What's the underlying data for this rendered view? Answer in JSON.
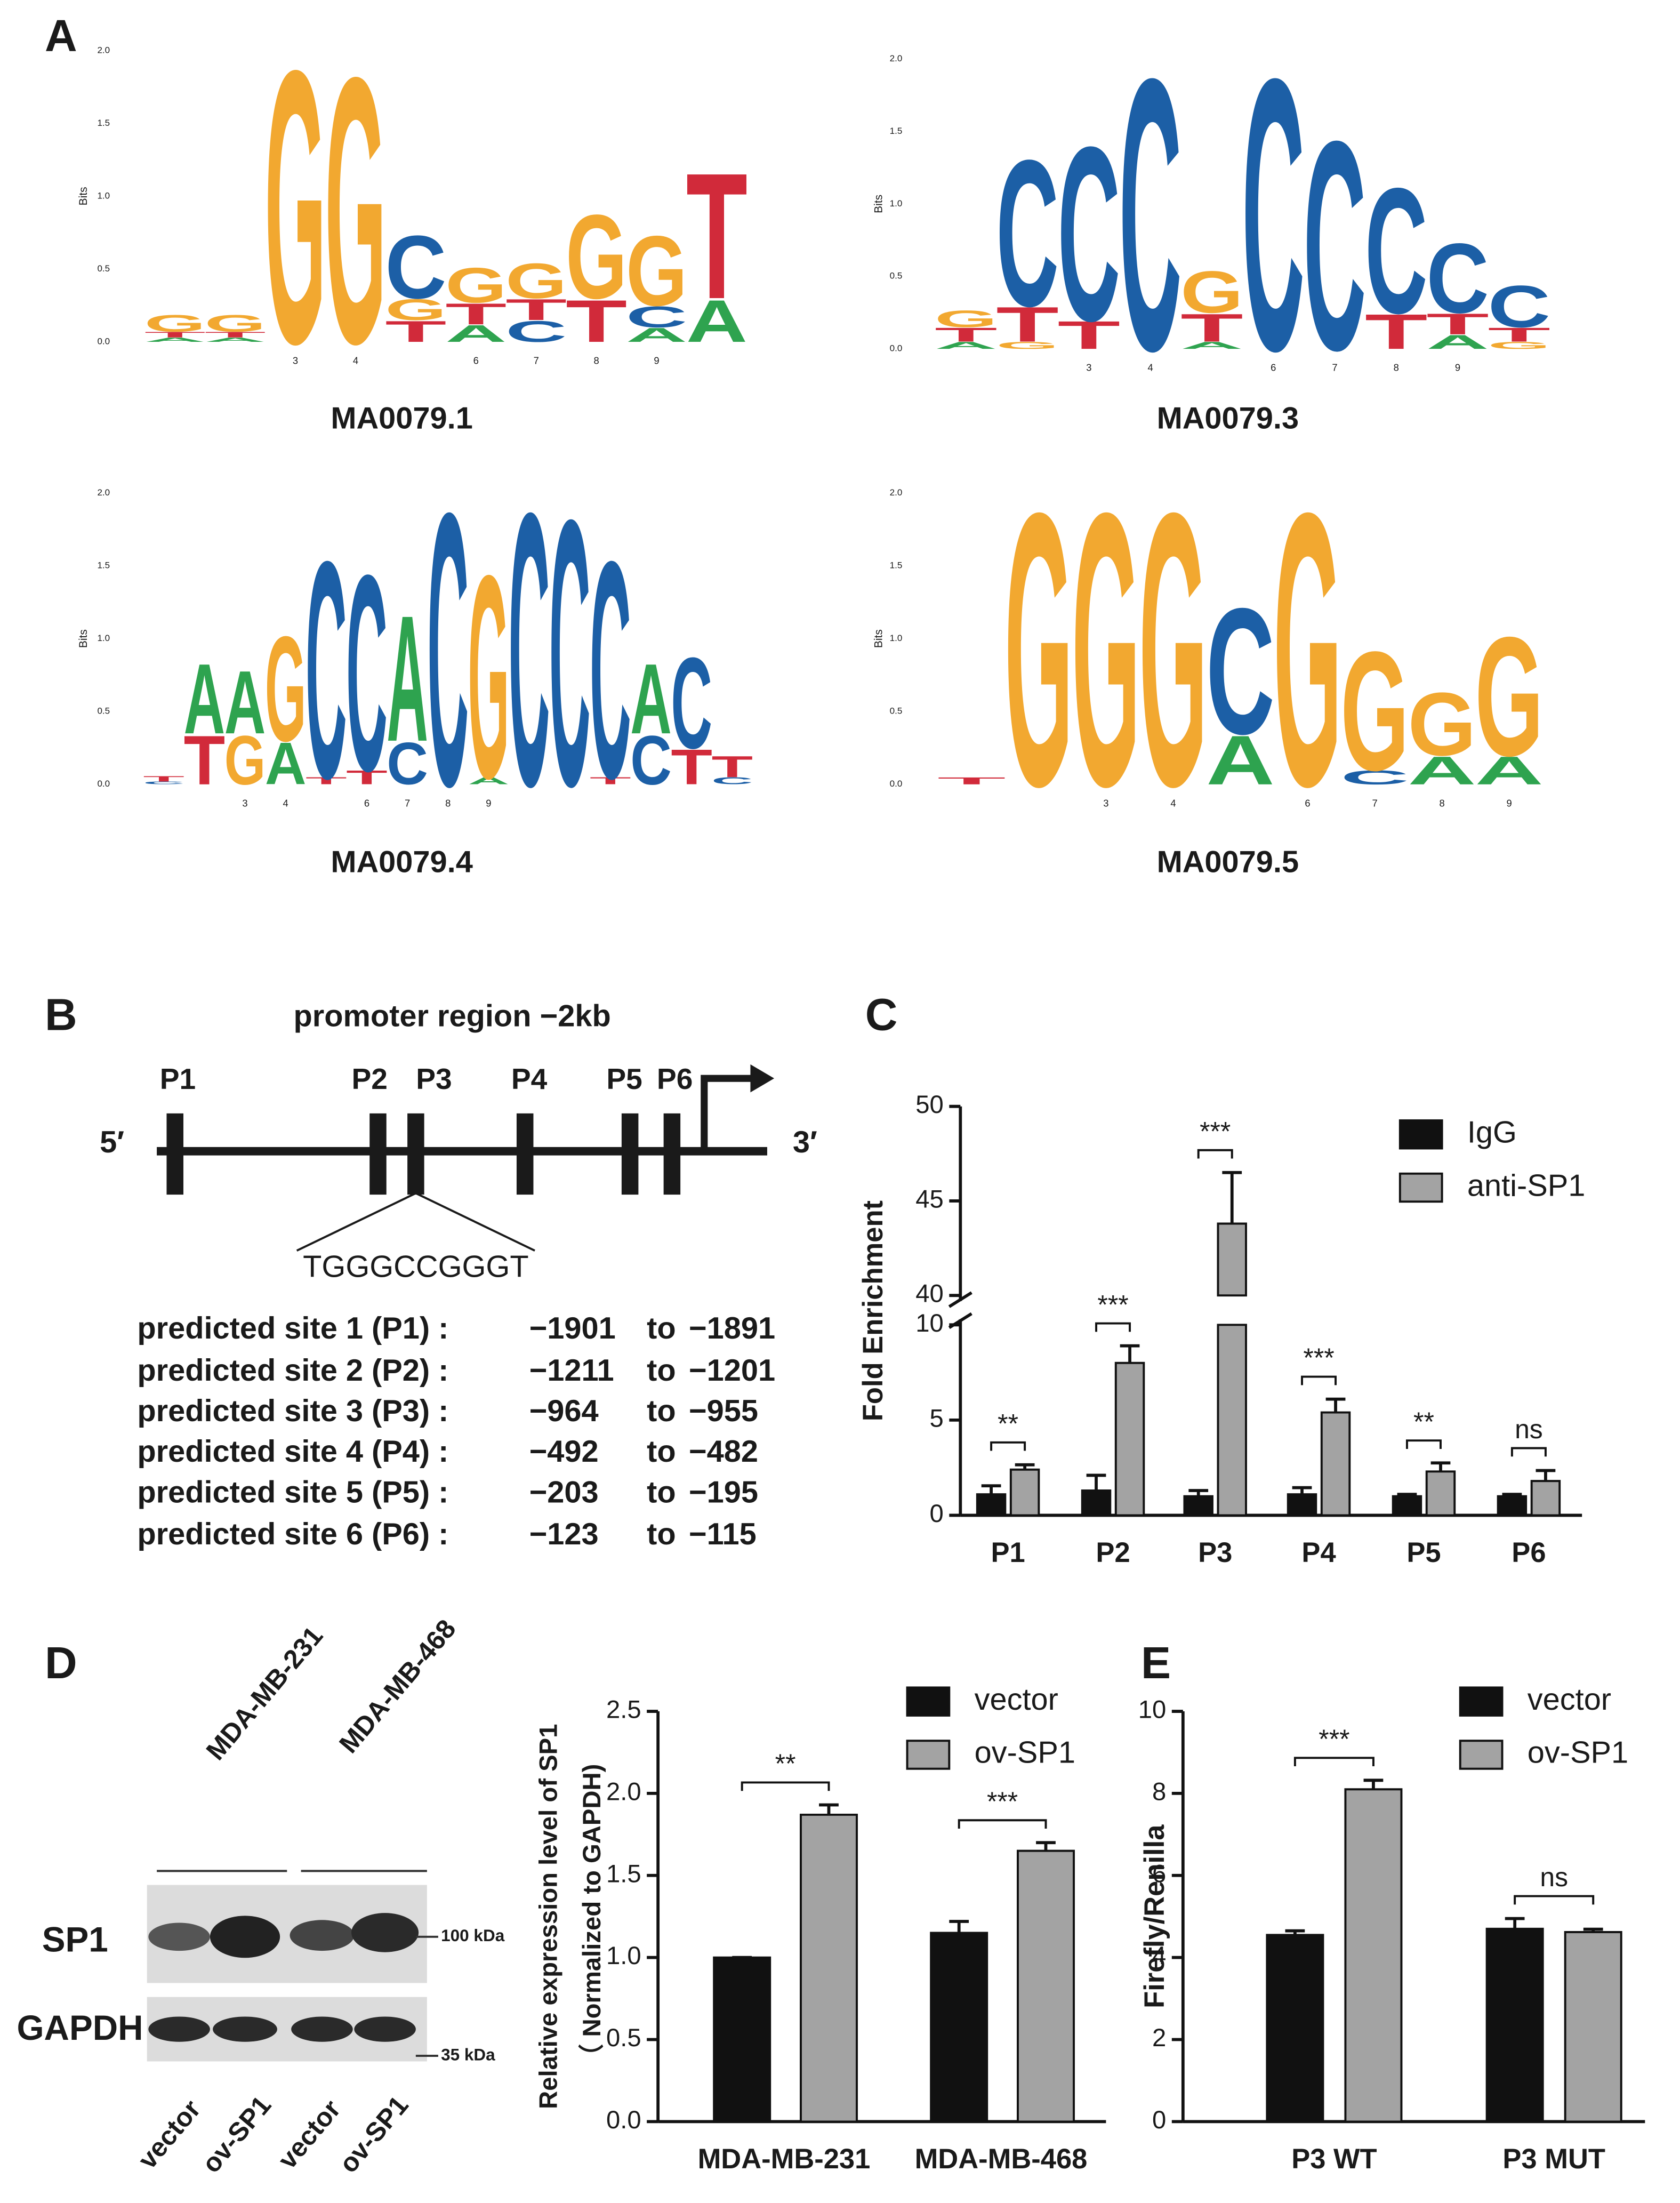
{
  "panel_labels": [
    "A",
    "B",
    "C",
    "D",
    "E"
  ],
  "promoter": {
    "title": "promoter region −2kb",
    "five_prime": "5′",
    "three_prime": "3′",
    "sites": [
      "P1",
      "P2",
      "P3",
      "P4",
      "P5",
      "P6"
    ],
    "sequence": "TGGGCCGGGT",
    "rows": [
      [
        "predicted site 1 (P1) :",
        "−1901",
        "to",
        "−1891"
      ],
      [
        "predicted site 2 (P2) :",
        "−1211",
        "to",
        "−1201"
      ],
      [
        "predicted site 3 (P3) :",
        "−964",
        "to",
        "−955"
      ],
      [
        "predicted site 4 (P4) :",
        "−492",
        "to",
        "−482"
      ],
      [
        "predicted site 5 (P5) :",
        "−203",
        "to",
        "−195"
      ],
      [
        "predicted site 6 (P6) :",
        "−123",
        "to",
        "−115"
      ]
    ]
  },
  "blot": {
    "cell_lines": [
      "MDA-MB-231",
      "MDA-MB-468"
    ],
    "proteins": [
      "SP1",
      "GAPDH"
    ],
    "markers": [
      "100 kDa",
      "35 kDa"
    ],
    "lanes": [
      "vector",
      "ov-SP1",
      "vector",
      "ov-SP1"
    ]
  },
  "chart_data": [
    {
      "type": "logo",
      "title": "MA0079.1",
      "ylabel": "Bits",
      "ylim": [
        0,
        2
      ],
      "yticks": [
        {
          "value": 0,
          "label": "0.0"
        },
        0.5,
        {
          "value": 1,
          "label": "1.0"
        },
        1.5,
        {
          "value": 2,
          "label": "2.0"
        }
      ],
      "categories": [
        null,
        null,
        "3",
        "4",
        null,
        "6",
        "7",
        "8",
        "9",
        null
      ],
      "colors": {
        "A": "#2ea34f",
        "C": "#1c5fa6",
        "G": "#f2a830",
        "T": "#d12a3a"
      },
      "stacks": [
        {
          "letters": [
            "A",
            "T",
            "G"
          ],
          "values": [
            0.03,
            0.04,
            0.12
          ]
        },
        {
          "letters": [
            "A",
            "T",
            "G"
          ],
          "values": [
            0.03,
            0.04,
            0.12
          ]
        },
        {
          "letters": [
            "G"
          ],
          "values": [
            1.95
          ]
        },
        {
          "letters": [
            "G"
          ],
          "values": [
            1.9
          ]
        },
        {
          "letters": [
            "T",
            "G",
            "C"
          ],
          "values": [
            0.15,
            0.15,
            0.45
          ]
        },
        {
          "letters": [
            "A",
            "T",
            "G"
          ],
          "values": [
            0.12,
            0.15,
            0.25
          ]
        },
        {
          "letters": [
            "C",
            "T",
            "G"
          ],
          "values": [
            0.15,
            0.15,
            0.25
          ]
        },
        {
          "letters": [
            "T",
            "G"
          ],
          "values": [
            0.3,
            0.6
          ]
        },
        {
          "letters": [
            "A",
            "C",
            "G"
          ],
          "values": [
            0.1,
            0.15,
            0.5
          ]
        },
        {
          "letters": [
            "A",
            "T"
          ],
          "values": [
            0.3,
            0.9
          ]
        }
      ]
    },
    {
      "type": "logo",
      "title": "MA0079.3",
      "ylabel": "Bits",
      "ylim": [
        0,
        2
      ],
      "yticks": [
        {
          "value": 0,
          "label": "0.0"
        },
        0.5,
        {
          "value": 1,
          "label": "1.0"
        },
        1.5,
        {
          "value": 2,
          "label": "2.0"
        }
      ],
      "categories": [
        null,
        null,
        "3",
        "4",
        null,
        "6",
        "7",
        "8",
        "9",
        null
      ],
      "colors": {
        "A": "#2ea34f",
        "C": "#1c5fa6",
        "G": "#f2a830",
        "T": "#d12a3a"
      },
      "stacks": [
        {
          "letters": [
            "A",
            "T",
            "G"
          ],
          "values": [
            0.05,
            0.1,
            0.12
          ]
        },
        {
          "letters": [
            "G",
            "T",
            "C"
          ],
          "values": [
            0.05,
            0.25,
            1.05
          ]
        },
        {
          "letters": [
            "T",
            "C"
          ],
          "values": [
            0.2,
            1.25
          ]
        },
        {
          "letters": [
            "C"
          ],
          "values": [
            1.95
          ]
        },
        {
          "letters": [
            "A",
            "T",
            "G"
          ],
          "values": [
            0.05,
            0.2,
            0.3
          ]
        },
        {
          "letters": [
            "C"
          ],
          "values": [
            1.95
          ]
        },
        {
          "letters": [
            "C"
          ],
          "values": [
            1.5
          ]
        },
        {
          "letters": [
            "T",
            "C"
          ],
          "values": [
            0.25,
            0.9
          ]
        },
        {
          "letters": [
            "A",
            "T",
            "C"
          ],
          "values": [
            0.1,
            0.15,
            0.5
          ]
        },
        {
          "letters": [
            "G",
            "T",
            "C"
          ],
          "values": [
            0.05,
            0.1,
            0.3
          ]
        }
      ]
    },
    {
      "type": "logo",
      "title": "MA0079.4",
      "ylabel": "Bits",
      "ylim": [
        0,
        2
      ],
      "yticks": [
        {
          "value": 0,
          "label": "0.0"
        },
        0.5,
        {
          "value": 1,
          "label": "1.0"
        },
        1.5,
        {
          "value": 2,
          "label": "2.0"
        }
      ],
      "categories": [
        null,
        null,
        "3",
        "4",
        null,
        "6",
        "7",
        "8",
        "9",
        null,
        null,
        null,
        null,
        null,
        null
      ],
      "colors": {
        "A": "#2ea34f",
        "C": "#1c5fa6",
        "G": "#f2a830",
        "T": "#d12a3a"
      },
      "stacks": [
        {
          "letters": [
            "C",
            "T"
          ],
          "values": [
            0.02,
            0.04
          ]
        },
        {
          "letters": [
            "T",
            "A"
          ],
          "values": [
            0.35,
            0.5
          ]
        },
        {
          "letters": [
            "G",
            "A"
          ],
          "values": [
            0.35,
            0.45
          ]
        },
        {
          "letters": [
            "A",
            "G"
          ],
          "values": [
            0.3,
            0.75
          ]
        },
        {
          "letters": [
            "T",
            "C"
          ],
          "values": [
            0.05,
            1.55
          ]
        },
        {
          "letters": [
            "T",
            "C"
          ],
          "values": [
            0.1,
            1.4
          ]
        },
        {
          "letters": [
            "C",
            "A"
          ],
          "values": [
            0.3,
            0.9
          ]
        },
        {
          "letters": [
            "C"
          ],
          "values": [
            1.95
          ]
        },
        {
          "letters": [
            "A",
            "G"
          ],
          "values": [
            0.05,
            1.45
          ]
        },
        {
          "letters": [
            "C"
          ],
          "values": [
            1.95
          ]
        },
        {
          "letters": [
            "C"
          ],
          "values": [
            1.9
          ]
        },
        {
          "letters": [
            "T",
            "C"
          ],
          "values": [
            0.05,
            1.55
          ]
        },
        {
          "letters": [
            "C",
            "A"
          ],
          "values": [
            0.35,
            0.5
          ]
        },
        {
          "letters": [
            "T",
            "C"
          ],
          "values": [
            0.25,
            0.65
          ]
        },
        {
          "letters": [
            "C",
            "T"
          ],
          "values": [
            0.05,
            0.15
          ]
        }
      ]
    },
    {
      "type": "logo",
      "title": "MA0079.5",
      "ylabel": "Bits",
      "ylim": [
        0,
        2
      ],
      "yticks": [
        {
          "value": 0,
          "label": "0.0"
        },
        0.5,
        {
          "value": 1,
          "label": "1.0"
        },
        1.5,
        {
          "value": 2,
          "label": "2.0"
        }
      ],
      "categories": [
        null,
        null,
        "3",
        "4",
        null,
        "6",
        "7",
        "8",
        "9"
      ],
      "colors": {
        "A": "#2ea34f",
        "C": "#1c5fa6",
        "G": "#f2a830",
        "T": "#d12a3a"
      },
      "stacks": [
        {
          "letters": [
            "T"
          ],
          "values": [
            0.05
          ]
        },
        {
          "letters": [
            "G"
          ],
          "values": [
            1.95
          ]
        },
        {
          "letters": [
            "G"
          ],
          "values": [
            1.95
          ]
        },
        {
          "letters": [
            "G"
          ],
          "values": [
            1.95
          ]
        },
        {
          "letters": [
            "A",
            "C"
          ],
          "values": [
            0.35,
            0.9
          ]
        },
        {
          "letters": [
            "G"
          ],
          "values": [
            1.95
          ]
        },
        {
          "letters": [
            "C",
            "G"
          ],
          "values": [
            0.1,
            0.85
          ]
        },
        {
          "letters": [
            "A",
            "G"
          ],
          "values": [
            0.2,
            0.45
          ]
        },
        {
          "letters": [
            "A",
            "G"
          ],
          "values": [
            0.2,
            0.85
          ]
        }
      ]
    },
    {
      "type": "bar",
      "ylabel": [
        "Fold Enrichment"
      ],
      "legend": "upper right",
      "categories": [
        "P1",
        "P2",
        "P3",
        "P4",
        "P5",
        "P6"
      ],
      "ylim": [
        0,
        50
      ],
      "ybreak": [
        10,
        40
      ],
      "yticks": [
        0,
        5,
        10,
        40,
        45,
        50
      ],
      "series": [
        {
          "name": "IgG",
          "color": "#111111",
          "values": [
            1.1,
            1.3,
            1.0,
            1.1,
            1.0,
            1.0
          ],
          "errors": [
            0.45,
            0.8,
            0.3,
            0.35,
            0.1,
            0.1
          ]
        },
        {
          "name": "anti-SP1",
          "color": "#a3a3a3",
          "values": [
            2.4,
            8.0,
            43.8,
            5.4,
            2.3,
            1.8
          ],
          "errors": [
            0.25,
            0.9,
            2.7,
            0.7,
            0.45,
            0.55
          ]
        }
      ],
      "annotations": [
        "**",
        "***",
        "***",
        "***",
        "**",
        "ns"
      ]
    },
    {
      "type": "bar",
      "ylabel": [
        "Relative expression level of SP1",
        "（ Normalized to GAPDH)"
      ],
      "legend": "upper right",
      "categories": [
        "MDA-MB-231",
        "MDA-MB-468"
      ],
      "ylim": [
        0,
        2.5
      ],
      "yticks": [
        {
          "value": 0,
          "label": "0.0"
        },
        0.5,
        {
          "value": 1,
          "label": "1.0"
        },
        1.5,
        {
          "value": 2,
          "label": "2.0"
        },
        2.5
      ],
      "series": [
        {
          "name": "vector",
          "color": "#111111",
          "values": [
            1.0,
            1.15
          ],
          "errors": [
            0,
            0.07
          ]
        },
        {
          "name": "ov-SP1",
          "color": "#a3a3a3",
          "values": [
            1.87,
            1.65
          ],
          "errors": [
            0.06,
            0.05
          ]
        }
      ],
      "annotations": [
        "**",
        "***"
      ]
    },
    {
      "type": "bar",
      "ylabel": [
        "Firefly/Renilla"
      ],
      "legend": "upper right",
      "categories": [
        "P3 WT",
        "P3 MUT"
      ],
      "ylim": [
        0,
        10
      ],
      "yticks": [
        0,
        2,
        4,
        6,
        8,
        10
      ],
      "series": [
        {
          "name": "vector",
          "color": "#111111",
          "values": [
            4.55,
            4.7
          ],
          "errors": [
            0.1,
            0.25
          ]
        },
        {
          "name": "ov-SP1",
          "color": "#a3a3a3",
          "values": [
            8.1,
            4.62
          ],
          "errors": [
            0.22,
            0.07
          ]
        }
      ],
      "annotations": [
        "***",
        "ns"
      ]
    }
  ]
}
